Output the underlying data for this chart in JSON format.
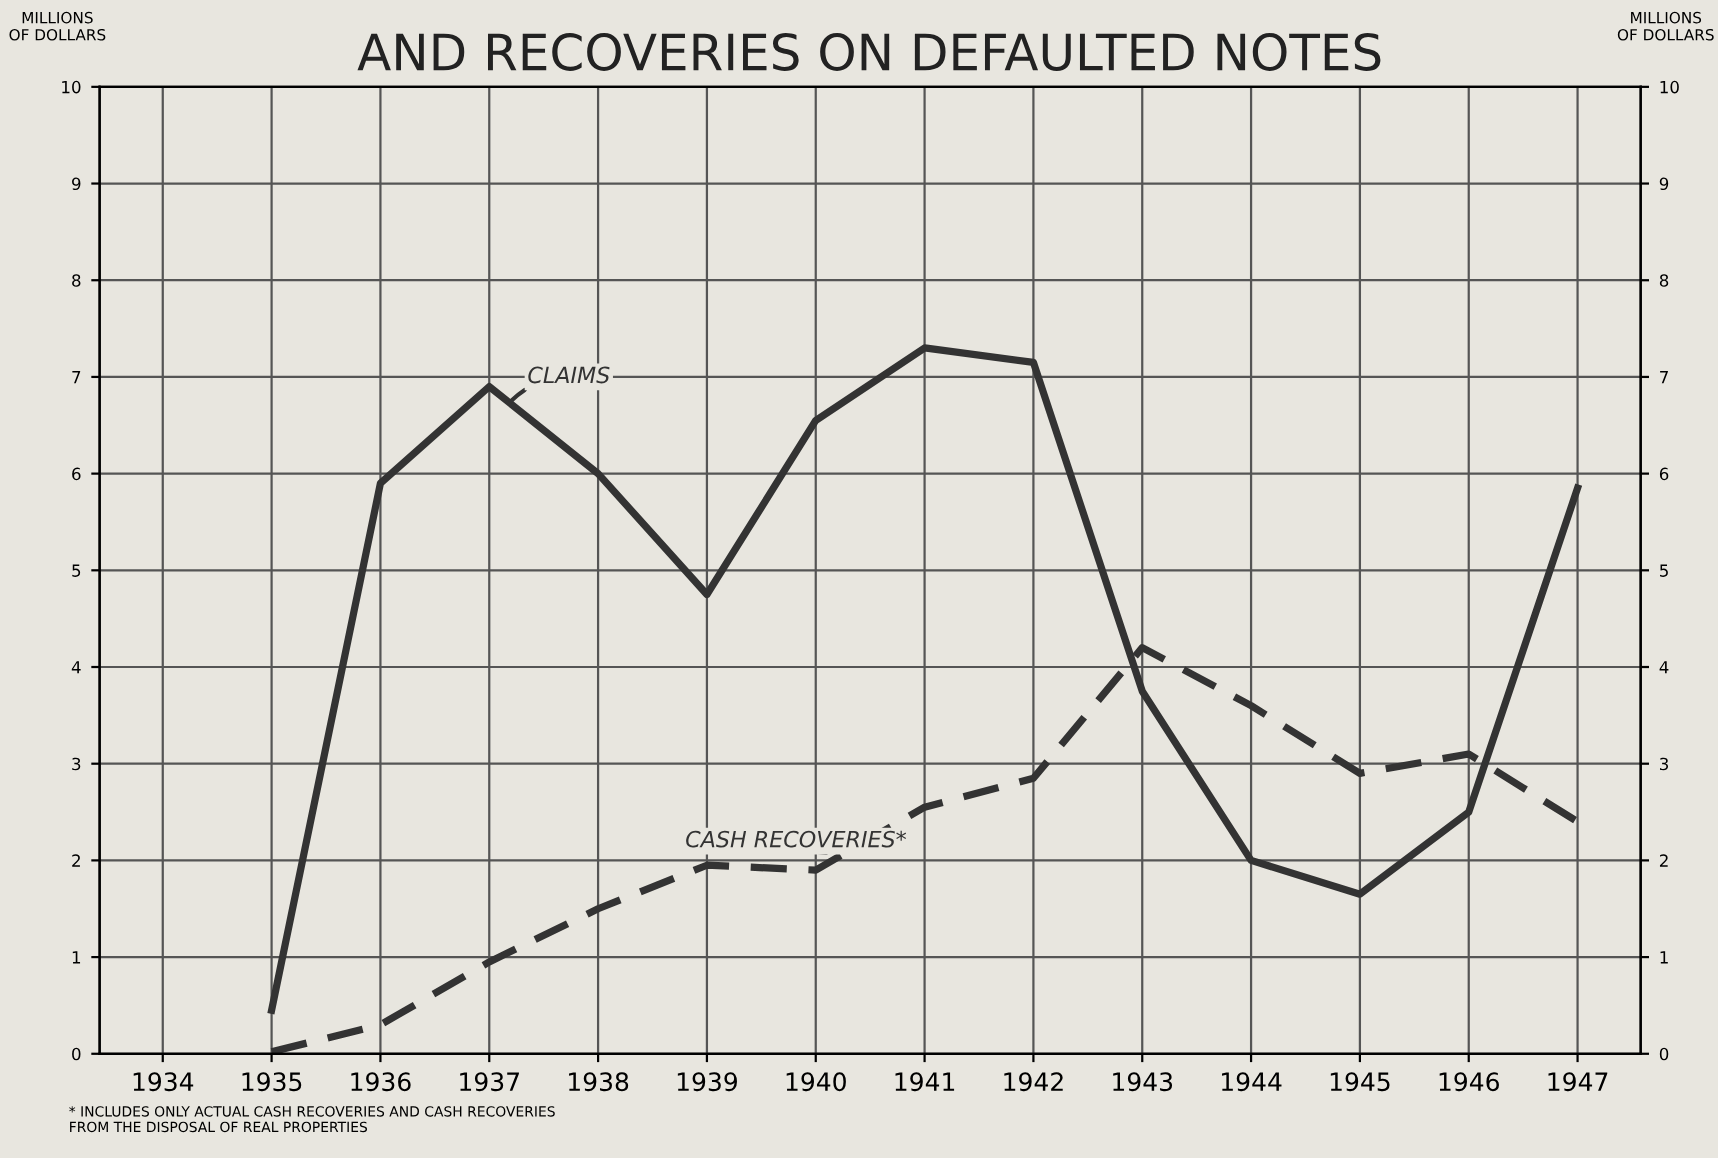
{
  "chart_data": {
    "type": "line",
    "title": "AND RECOVERIES ON DEFAULTED NOTES",
    "ylabel": "MILLIONS\nOF DOLLARS",
    "y2label": "MILLIONS\nOF DOLLARS",
    "categories": [
      "1934",
      "1935",
      "1936",
      "1937",
      "1938",
      "1939",
      "1940",
      "1941",
      "1942",
      "1943",
      "1944",
      "1945",
      "1946",
      "1947"
    ],
    "series": [
      {
        "name": "CLAIMS",
        "color": "#333333",
        "line_style": "solid",
        "values": [
          null,
          0.45,
          5.9,
          6.9,
          6.0,
          4.75,
          6.55,
          7.3,
          7.15,
          3.75,
          2.0,
          1.65,
          2.5,
          5.85
        ]
      },
      {
        "name": "CASH RECOVERIES*",
        "color": "#333333",
        "line_style": "dashed",
        "values": [
          null,
          0.02,
          0.3,
          0.95,
          1.5,
          1.95,
          1.9,
          2.55,
          2.85,
          4.2,
          3.6,
          2.9,
          3.1,
          2.4
        ]
      }
    ],
    "ylim": [
      0,
      10
    ],
    "yticks": [
      0,
      1,
      2,
      3,
      4,
      5,
      6,
      7,
      8,
      9,
      10
    ],
    "y2lim": [
      0,
      10
    ],
    "y2ticks": [
      0,
      1,
      2,
      3,
      4,
      5,
      6,
      7,
      8,
      9,
      10
    ],
    "grid": true,
    "legend": false,
    "marker": "none",
    "annotations": [
      "* INCLUDES ONLY ACTUAL CASH RECOVERIES AND CASH RECOVERIES\nFROM THE DISPOSAL OF REAL PROPERTIES"
    ]
  }
}
